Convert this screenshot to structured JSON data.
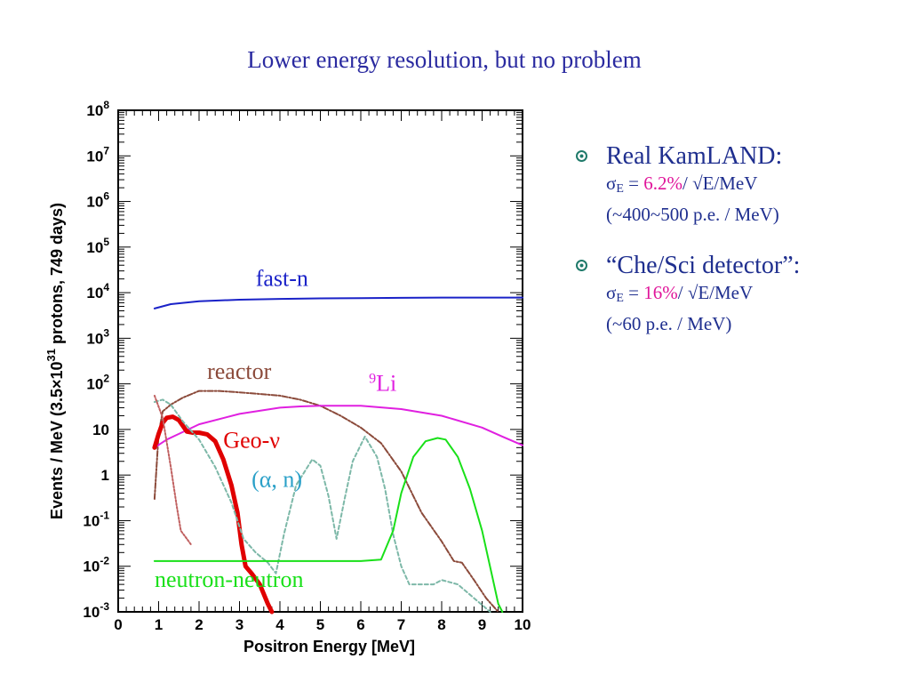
{
  "slide": {
    "title": "Lower energy resolution, but no problem"
  },
  "bullets": [
    {
      "head": "Real KamLAND:",
      "sigma_symbol": "σ",
      "sigma_sub": "E",
      "eq": " = ",
      "value": "6.2%",
      "rest": "/ √E/MeV",
      "note": "(~400~500 p.e. / MeV)"
    },
    {
      "head": "“Che/Sci detector”:",
      "sigma_symbol": "σ",
      "sigma_sub": "E",
      "eq": " = ",
      "value": "16%",
      "rest": "/ √E/MeV",
      "note": "(~60 p.e. / MeV)"
    }
  ],
  "colors": {
    "title": "#2a2aa0",
    "text": "#1f2f8f",
    "accent": "#e0159a",
    "bullet_icon": "#1f7a6a"
  },
  "chart_data": {
    "type": "line",
    "xlabel": "Positron Energy [MeV]",
    "ylabel_parts": [
      "Events / MeV (3.5×10",
      "31",
      " protons, 749 days)"
    ],
    "xlim": [
      0,
      10
    ],
    "ylim": [
      0.001,
      100000000
    ],
    "yscale": "log",
    "x_ticks": [
      0,
      1,
      2,
      3,
      4,
      5,
      6,
      7,
      8,
      9,
      10
    ],
    "y_ticks": [
      {
        "v": 0.001,
        "base": "10",
        "exp": "-3"
      },
      {
        "v": 0.01,
        "base": "10",
        "exp": "-2"
      },
      {
        "v": 0.1,
        "base": "10",
        "exp": "-1"
      },
      {
        "v": 1,
        "base": "1",
        "exp": ""
      },
      {
        "v": 10,
        "base": "10",
        "exp": ""
      },
      {
        "v": 100,
        "base": "10",
        "exp": "2"
      },
      {
        "v": 1000,
        "base": "10",
        "exp": "3"
      },
      {
        "v": 10000,
        "base": "10",
        "exp": "4"
      },
      {
        "v": 100000,
        "base": "10",
        "exp": "5"
      },
      {
        "v": 1000000,
        "base": "10",
        "exp": "6"
      },
      {
        "v": 10000000,
        "base": "10",
        "exp": "7"
      },
      {
        "v": 100000000,
        "base": "10",
        "exp": "8"
      }
    ],
    "series": [
      {
        "key": "fast_n",
        "label": "fast-n",
        "color": "#1a22c8",
        "dash": "",
        "width": 2,
        "labelx": 3.4,
        "labely": 14000,
        "points": [
          [
            0.9,
            4500
          ],
          [
            1.3,
            5600
          ],
          [
            2,
            6500
          ],
          [
            3,
            7000
          ],
          [
            4,
            7300
          ],
          [
            5,
            7500
          ],
          [
            6,
            7600
          ],
          [
            7,
            7700
          ],
          [
            8,
            7800
          ],
          [
            9,
            7800
          ],
          [
            10,
            7800
          ]
        ]
      },
      {
        "key": "reactor",
        "label": "reactor",
        "color": "#8b4a3a",
        "dash": "6,2,2,2",
        "width": 2,
        "labelx": 2.2,
        "labely": 130,
        "points": [
          [
            0.9,
            0.3
          ],
          [
            1.0,
            8
          ],
          [
            1.1,
            25
          ],
          [
            1.3,
            35
          ],
          [
            1.6,
            50
          ],
          [
            2,
            70
          ],
          [
            2.5,
            70
          ],
          [
            3,
            65
          ],
          [
            3.5,
            60
          ],
          [
            4,
            55
          ],
          [
            4.5,
            45
          ],
          [
            5,
            33
          ],
          [
            5.5,
            20
          ],
          [
            6,
            11
          ],
          [
            6.5,
            5
          ],
          [
            7,
            1.2
          ],
          [
            7.5,
            0.15
          ],
          [
            8,
            0.035
          ],
          [
            8.3,
            0.013
          ],
          [
            8.5,
            0.012
          ],
          [
            8.8,
            0.005
          ],
          [
            9.1,
            0.002
          ],
          [
            9.4,
            0.001
          ]
        ]
      },
      {
        "key": "li9",
        "label_base": "9",
        "label_text": "Li",
        "color": "#e020e0",
        "dash": "",
        "width": 2,
        "labelx": 6.2,
        "labely": 70,
        "points": [
          [
            0.9,
            4
          ],
          [
            1.2,
            6
          ],
          [
            1.5,
            8
          ],
          [
            2,
            13
          ],
          [
            3,
            22
          ],
          [
            4,
            30
          ],
          [
            4.5,
            32
          ],
          [
            5,
            33
          ],
          [
            6,
            33
          ],
          [
            7,
            28
          ],
          [
            8,
            20
          ],
          [
            9,
            11
          ],
          [
            9.5,
            7
          ],
          [
            10,
            4.5
          ]
        ]
      },
      {
        "key": "geo_nu",
        "label": "Geo-ν",
        "color": "#e00000",
        "dash": "",
        "width": 5,
        "labelx": 2.6,
        "labely": 4,
        "points": [
          [
            0.9,
            4
          ],
          [
            1.0,
            8
          ],
          [
            1.1,
            14
          ],
          [
            1.2,
            18
          ],
          [
            1.35,
            19
          ],
          [
            1.5,
            16
          ],
          [
            1.7,
            9
          ],
          [
            1.85,
            8.5
          ],
          [
            2,
            8.5
          ],
          [
            2.2,
            7.8
          ],
          [
            2.4,
            5.5
          ],
          [
            2.6,
            2.2
          ],
          [
            2.8,
            0.6
          ],
          [
            2.95,
            0.15
          ],
          [
            3.05,
            0.03
          ],
          [
            3.15,
            0.01
          ],
          [
            3.3,
            0.007
          ],
          [
            3.5,
            0.004
          ],
          [
            3.7,
            0.0015
          ],
          [
            3.8,
            0.001
          ]
        ]
      },
      {
        "key": "alpha_n",
        "label": "(α, n)",
        "color": "#7db8a8",
        "dash": "4,3",
        "width": 2,
        "labelx": 3.3,
        "labely": 0.55,
        "points": [
          [
            0.9,
            40
          ],
          [
            1.1,
            45
          ],
          [
            1.3,
            35
          ],
          [
            1.6,
            15
          ],
          [
            2,
            6
          ],
          [
            2.4,
            1.5
          ],
          [
            2.8,
            0.25
          ],
          [
            3.1,
            0.04
          ],
          [
            3.4,
            0.02
          ],
          [
            3.7,
            0.012
          ],
          [
            3.9,
            0.007
          ],
          [
            4.1,
            0.05
          ],
          [
            4.4,
            0.6
          ],
          [
            4.8,
            2.2
          ],
          [
            5,
            1.6
          ],
          [
            5.2,
            0.35
          ],
          [
            5.4,
            0.04
          ],
          [
            5.6,
            0.3
          ],
          [
            5.8,
            2
          ],
          [
            6.1,
            7
          ],
          [
            6.4,
            2.5
          ],
          [
            6.6,
            0.5
          ],
          [
            6.8,
            0.05
          ],
          [
            7,
            0.01
          ],
          [
            7.2,
            0.004
          ],
          [
            7.8,
            0.004
          ],
          [
            8,
            0.005
          ],
          [
            8.4,
            0.004
          ],
          [
            8.8,
            0.002
          ],
          [
            9.2,
            0.001
          ]
        ]
      },
      {
        "key": "alpha_n_low",
        "label": "",
        "color": "#c06060",
        "dash": "2,2",
        "width": 2,
        "labelx": 0,
        "labely": 0,
        "points": [
          [
            0.9,
            55
          ],
          [
            1.1,
            18
          ],
          [
            1.3,
            1.5
          ],
          [
            1.45,
            0.2
          ],
          [
            1.55,
            0.06
          ],
          [
            1.7,
            0.04
          ],
          [
            1.8,
            0.03
          ]
        ]
      },
      {
        "key": "nn",
        "label": "neutron-neutron",
        "color": "#19e019",
        "dash": "",
        "width": 2,
        "labelx": 0.9,
        "labely": 0.0035,
        "points": [
          [
            0.9,
            0.013
          ],
          [
            2,
            0.013
          ],
          [
            3,
            0.013
          ],
          [
            4,
            0.013
          ],
          [
            5,
            0.013
          ],
          [
            6,
            0.013
          ],
          [
            6.5,
            0.014
          ],
          [
            6.8,
            0.06
          ],
          [
            7,
            0.4
          ],
          [
            7.3,
            2.5
          ],
          [
            7.6,
            5.5
          ],
          [
            7.9,
            6.5
          ],
          [
            8.1,
            6
          ],
          [
            8.4,
            2.5
          ],
          [
            8.7,
            0.5
          ],
          [
            9,
            0.06
          ],
          [
            9.25,
            0.006
          ],
          [
            9.4,
            0.0015
          ],
          [
            9.5,
            0.001
          ]
        ]
      }
    ]
  }
}
